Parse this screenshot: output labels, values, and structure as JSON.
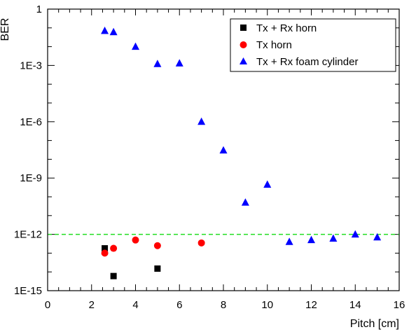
{
  "chart_data": {
    "type": "scatter",
    "title": "",
    "xlabel": "Pitch [cm]",
    "ylabel": "BER",
    "xlim": [
      0,
      16
    ],
    "ylim_exponent": [
      -15,
      0
    ],
    "yscale": "log",
    "x_ticks": [
      "0",
      "2",
      "4",
      "6",
      "8",
      "10",
      "12",
      "14",
      "16"
    ],
    "y_ticks": [
      "1E-15",
      "1E-12",
      "1E-9",
      "1E-6",
      "1E-3",
      "1"
    ],
    "grid": false,
    "legend_position": "top-right",
    "threshold_line": {
      "value": 1e-12,
      "color": "#22dd22",
      "style": "dashed"
    },
    "series": [
      {
        "name": "Tx + Rx horn",
        "marker": "square",
        "color": "#000000",
        "x": [
          2.6,
          3.0,
          5.0
        ],
        "y": [
          1.8e-13,
          6e-15,
          1.5e-14
        ]
      },
      {
        "name": "Tx horn",
        "marker": "circle",
        "color": "#ff0000",
        "x": [
          2.6,
          3.0,
          4.0,
          5.0,
          7.0
        ],
        "y": [
          1e-13,
          1.8e-13,
          5e-13,
          2.5e-13,
          3.5e-13
        ]
      },
      {
        "name": "Tx + Rx foam cylinder",
        "marker": "triangle",
        "color": "#0000ff",
        "x": [
          2.6,
          3.0,
          4.0,
          5.0,
          6.0,
          7.0,
          8.0,
          9.0,
          10.0,
          11.0,
          12.0,
          13.0,
          14.0,
          15.0
        ],
        "y": [
          0.07,
          0.06,
          0.01,
          0.0012,
          0.0013,
          1e-06,
          3e-08,
          5e-11,
          4.5e-10,
          4e-13,
          5e-13,
          6e-13,
          1e-12,
          7e-13
        ]
      }
    ]
  }
}
